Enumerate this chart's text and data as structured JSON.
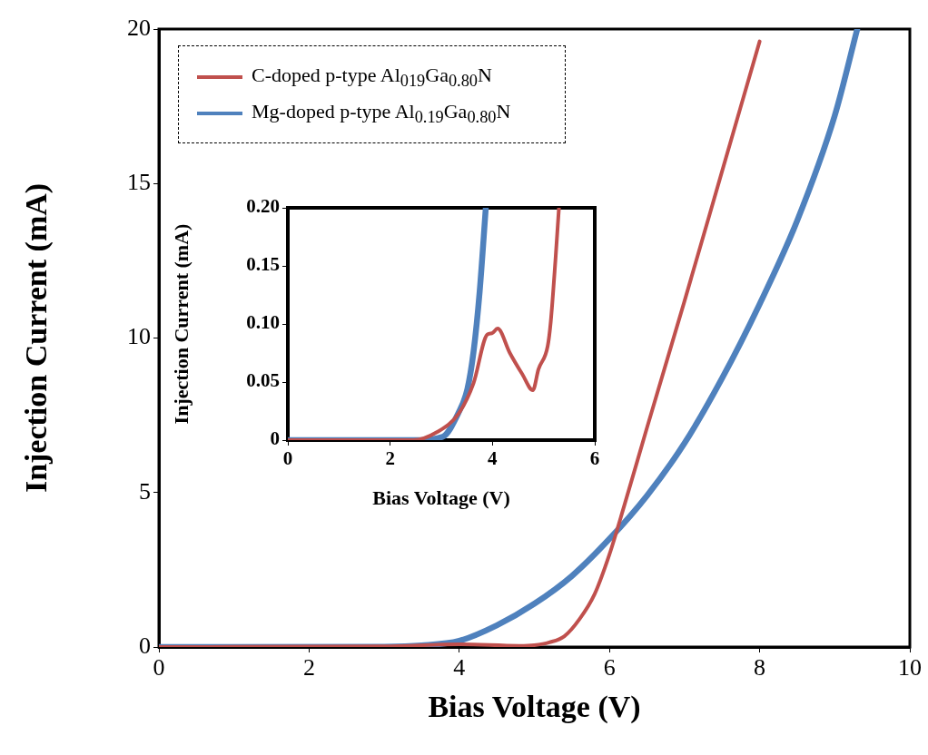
{
  "chart_data": [
    {
      "type": "line",
      "xlabel": "Bias Voltage (V)",
      "ylabel": "Injection Current (mA)",
      "xlim": [
        0,
        10
      ],
      "xticks": [
        0,
        2,
        4,
        6,
        8,
        10
      ],
      "ylim": [
        0,
        20
      ],
      "yticks": [
        0,
        5,
        10,
        15,
        20
      ],
      "legend": "top left",
      "grid": false,
      "marker": "none",
      "line_style": "solid",
      "series": [
        {
          "name": "C-doped p-type Al$_{019}$Ga$_{0.80}$N",
          "color": "#c0504d",
          "x": [
            0,
            3,
            4,
            4.8,
            5,
            5.2,
            5.4,
            5.6,
            5.8,
            6,
            6.2,
            6.5,
            7,
            7.5,
            8
          ],
          "values": [
            0,
            0.02,
            0.09,
            0.04,
            0.06,
            0.15,
            0.35,
            0.9,
            1.7,
            3.0,
            4.6,
            7.1,
            11.2,
            15.4,
            19.6
          ]
        },
        {
          "name": "Mg-doped p-type Al$_{0.19}$Ga$_{0.80}$N",
          "color": "#4f81bd",
          "x": [
            0,
            3,
            3.5,
            4,
            4.5,
            5,
            5.5,
            6,
            6.5,
            7,
            7.5,
            8,
            8.5,
            9,
            9.3
          ],
          "values": [
            0,
            0.01,
            0.05,
            0.2,
            0.7,
            1.4,
            2.3,
            3.5,
            4.9,
            6.6,
            8.7,
            11.1,
            13.8,
            17.2,
            20
          ]
        }
      ]
    },
    {
      "type": "line",
      "xlabel": "Bias Voltage (V)",
      "ylabel": "Injection Current (mA)",
      "xlim": [
        0,
        6
      ],
      "xticks": [
        0,
        2,
        4,
        6
      ],
      "ylim": [
        0,
        0.2
      ],
      "yticks": [
        0,
        0.05,
        {
          "value": 0.1,
          "label": "0.10"
        },
        0.15,
        {
          "value": 0.2,
          "label": "0.20"
        }
      ],
      "grid": false,
      "marker": "none",
      "line_style": "solid",
      "series": [
        {
          "color": "#c0504d",
          "x": [
            0,
            2.45,
            2.92,
            3.34,
            3.63,
            3.9,
            3.99,
            4.1,
            4.34,
            4.58,
            4.79,
            4.9,
            5.08,
            5.14,
            5.23,
            5.3
          ],
          "values": [
            0,
            0,
            0.007,
            0.023,
            0.049,
            0.091,
            0.092,
            0.096,
            0.075,
            0.057,
            0.043,
            0.061,
            0.081,
            0.102,
            0.154,
            0.2
          ]
        },
        {
          "color": "#4f81bd",
          "x": [
            0,
            2.5,
            3.03,
            3.33,
            3.51,
            3.63,
            3.75,
            3.87
          ],
          "values": [
            0,
            0,
            0.003,
            0.023,
            0.044,
            0.076,
            0.128,
            0.2
          ]
        }
      ]
    }
  ]
}
